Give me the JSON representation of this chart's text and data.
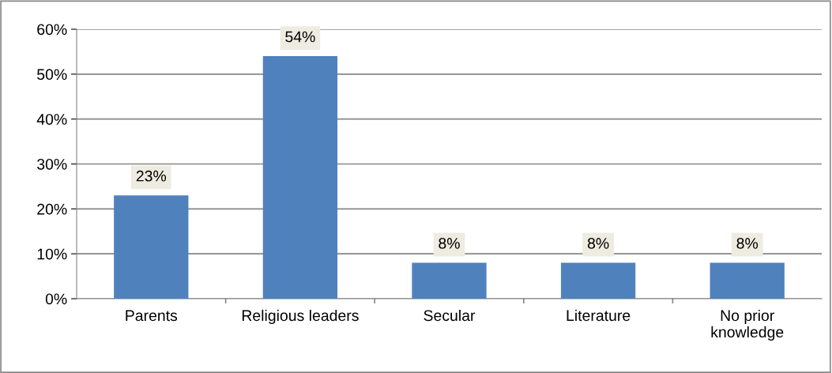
{
  "chart_data": {
    "type": "bar",
    "categories": [
      "Parents",
      "Religious leaders",
      "Secular",
      "Literature",
      "No prior\nknowledge"
    ],
    "values": [
      23,
      54,
      8,
      8,
      8
    ],
    "color": "#4f81bd",
    "value_labels": [
      "23%",
      "54%",
      "8%",
      "8%",
      "8%"
    ],
    "ylim": [
      0,
      60
    ],
    "yticks": [
      {
        "value": 0,
        "label": "0%"
      },
      {
        "value": 10,
        "label": "10%"
      },
      {
        "value": 20,
        "label": "20%"
      },
      {
        "value": 30,
        "label": "30%"
      },
      {
        "value": 40,
        "label": "40%"
      },
      {
        "value": 50,
        "label": "50%"
      },
      {
        "value": 60,
        "label": "60%"
      }
    ],
    "grid": "y"
  }
}
